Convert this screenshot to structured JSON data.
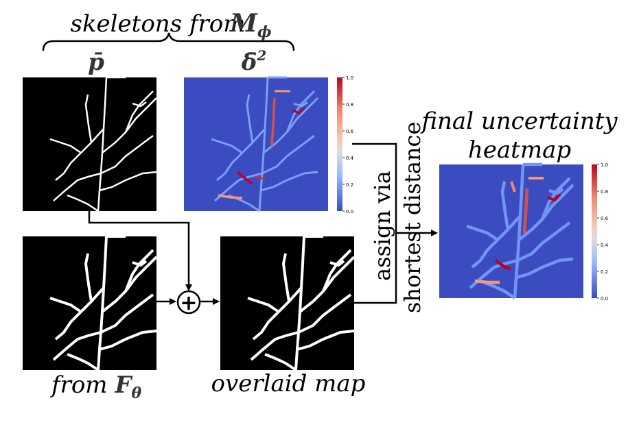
{
  "labels": {
    "skeletons_from": "skeletons from",
    "m_sym": "M",
    "m_sub": "ϕ",
    "p_bar": "p̄",
    "delta_bar": "δ̄",
    "delta_sup": "2",
    "final_line1": "final uncertainty",
    "final_line2": "heatmap",
    "from_label": "from",
    "f_sym": "F",
    "f_sub": "θ",
    "overlaid": "overlaid map",
    "assign_line1": "assign via",
    "assign_line2": "shortest distance",
    "plus_symbol": "+"
  },
  "colorbar": {
    "ticks": [
      "1.0",
      "0.8",
      "0.6",
      "0.4",
      "0.2",
      "0.0"
    ],
    "gradient": [
      "#b40426",
      "#f08a6c",
      "#f3c7b1",
      "#c5d6f2",
      "#7b9ff9",
      "#3b4cc0"
    ]
  },
  "colors": {
    "heat_bg": "#3b4cc0",
    "vessel_mid": "#7396f5",
    "vessel_hot": "#b40426",
    "vessel_warm": "#f4987a",
    "binary_bg": "#000000",
    "binary_fg": "#ffffff"
  }
}
